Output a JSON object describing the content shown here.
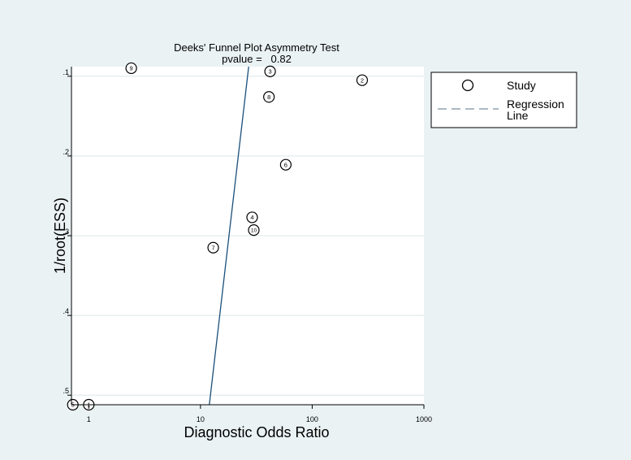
{
  "chart_data": {
    "type": "scatter",
    "title": "Deeks' Funnel Plot Asymmetry Test",
    "subtitle": "pvalue =   0.82",
    "xlabel": "Diagnostic Odds Ratio",
    "ylabel": "1/root(ESS)",
    "x_scale": "log",
    "y_axis_reversed": true,
    "xlim": [
      0.7,
      1000
    ],
    "ylim": [
      0.088,
      0.512
    ],
    "x_ticks": [
      1,
      10,
      100,
      1000
    ],
    "x_tick_labels": [
      "1",
      "10",
      "100",
      "1000"
    ],
    "y_ticks": [
      0.1,
      0.2,
      0.3,
      0.4,
      0.5
    ],
    "y_tick_labels": [
      ".1",
      ".2",
      ".3",
      ".4",
      ".5"
    ],
    "grid": "horizontal",
    "legend_position": "right",
    "legend": [
      {
        "name": "Study",
        "marker": "circle"
      },
      {
        "name": "Regression\nLine",
        "marker": "dashed-line"
      }
    ],
    "points": [
      {
        "label": "1",
        "x": 1.0,
        "y": 0.512
      },
      {
        "label": "2",
        "x": 280,
        "y": 0.105
      },
      {
        "label": "3",
        "x": 42,
        "y": 0.094
      },
      {
        "label": "4",
        "x": 29,
        "y": 0.277
      },
      {
        "label": "5",
        "x": 0.72,
        "y": 0.512
      },
      {
        "label": "6",
        "x": 58,
        "y": 0.211
      },
      {
        "label": "7",
        "x": 13,
        "y": 0.315
      },
      {
        "label": "8",
        "x": 41,
        "y": 0.126
      },
      {
        "label": "9",
        "x": 2.4,
        "y": 0.09
      },
      {
        "label": "10",
        "x": 30,
        "y": 0.293
      }
    ],
    "regression_line": {
      "points": [
        {
          "x": 12,
          "y": 0.512
        },
        {
          "x": 27,
          "y": 0.088
        }
      ]
    },
    "colors": {
      "background": "#eaf2f3",
      "plot_area": "#ffffff",
      "gridline": "#e3ecee",
      "regression": "#1a4f7a"
    }
  }
}
